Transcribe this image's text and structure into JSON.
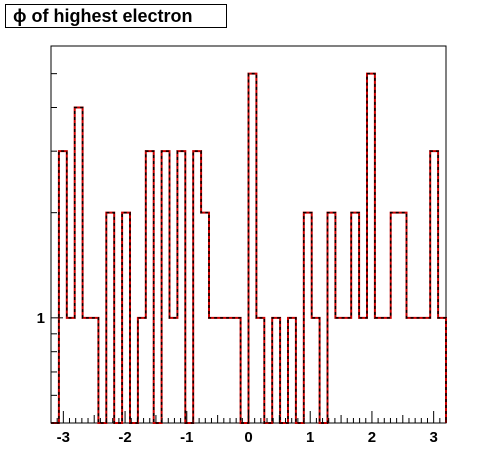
{
  "chart_data": {
    "type": "histogram",
    "title": "ϕ of highest electron",
    "xlabel": "",
    "ylabel": "",
    "xlim": [
      -3.2,
      3.2
    ],
    "y_scale": "log",
    "ylim": [
      0.5,
      6
    ],
    "x_ticks": [
      -3,
      -2,
      -1,
      0,
      1,
      2,
      3
    ],
    "x_tick_labels": [
      "-3",
      "-2",
      "-1",
      "0",
      "1",
      "2",
      "3"
    ],
    "y_ticks": [
      1
    ],
    "y_tick_labels": [
      "1"
    ],
    "bin_edges": [
      -3.2,
      -3.072,
      -2.944,
      -2.816,
      -2.688,
      -2.56,
      -2.432,
      -2.304,
      -2.176,
      -2.048,
      -1.92,
      -1.792,
      -1.664,
      -1.536,
      -1.408,
      -1.28,
      -1.152,
      -1.024,
      -0.896,
      -0.768,
      -0.64,
      -0.512,
      -0.384,
      -0.256,
      -0.128,
      0.0,
      0.128,
      0.256,
      0.384,
      0.512,
      0.64,
      0.768,
      0.896,
      1.024,
      1.152,
      1.28,
      1.408,
      1.536,
      1.664,
      1.792,
      1.92,
      2.048,
      2.176,
      2.304,
      2.432,
      2.56,
      2.688,
      2.816,
      2.944,
      3.072,
      3.2
    ],
    "values": [
      0,
      3,
      1,
      4,
      1,
      1,
      0,
      2,
      0,
      2,
      0,
      1,
      3,
      0,
      3,
      1,
      3,
      0,
      3,
      2,
      1,
      1,
      1,
      1,
      0,
      5,
      1,
      0,
      1,
      0,
      1,
      0,
      2,
      1,
      0,
      2,
      1,
      1,
      2,
      1,
      5,
      1,
      1,
      2,
      2,
      1,
      1,
      1,
      3,
      1
    ],
    "series": [
      {
        "name": "",
        "line_color": "#cc0000",
        "dash_color": "#000000"
      }
    ],
    "grid": false,
    "legend": "none"
  }
}
